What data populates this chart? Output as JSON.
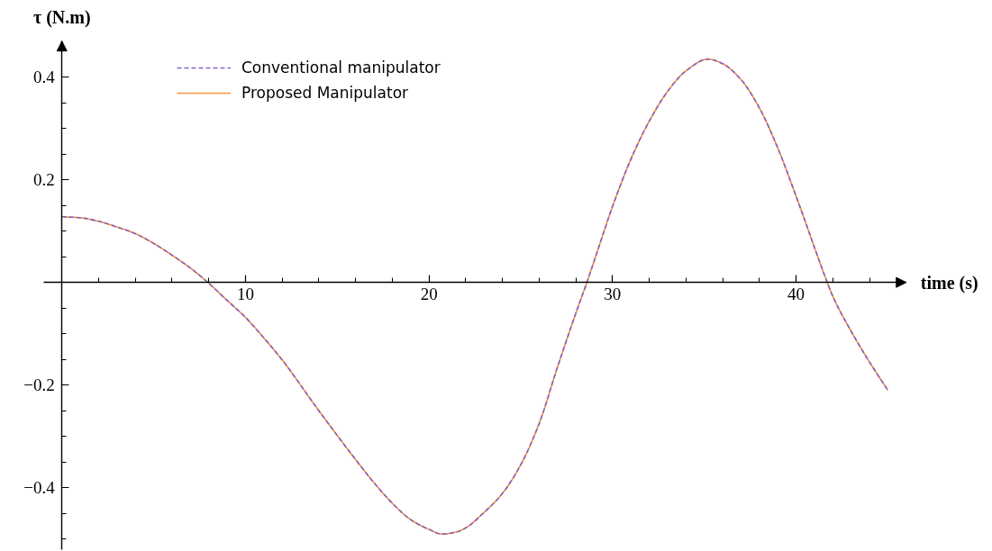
{
  "chart_data": {
    "type": "line",
    "xlabel": "time (s)",
    "ylabel": "τ (N.m)",
    "x": [
      0,
      1,
      2,
      3,
      4,
      5,
      6,
      7,
      7.95,
      9,
      10,
      11,
      12,
      14,
      15,
      16,
      17,
      18,
      19,
      20,
      20.7,
      21.5,
      22,
      23,
      24,
      25,
      26,
      27,
      28,
      28.6,
      29,
      30,
      31,
      32,
      33,
      34,
      35.2,
      36,
      37,
      38,
      39,
      40,
      41.7,
      42,
      43,
      44,
      45
    ],
    "series": [
      {
        "name": "Conventional manipulator",
        "color": "#8462c4",
        "line_style": "dashed",
        "values": [
          0.128,
          0.126,
          0.119,
          0.108,
          0.095,
          0.076,
          0.053,
          0.028,
          0,
          -0.035,
          -0.068,
          -0.108,
          -0.151,
          -0.25,
          -0.298,
          -0.345,
          -0.39,
          -0.43,
          -0.462,
          -0.481,
          -0.49,
          -0.486,
          -0.478,
          -0.448,
          -0.411,
          -0.355,
          -0.275,
          -0.165,
          -0.06,
          0,
          0.042,
          0.148,
          0.24,
          0.314,
          0.372,
          0.412,
          0.435,
          0.426,
          0.395,
          0.34,
          0.262,
          0.168,
          0,
          -0.027,
          -0.095,
          -0.155,
          -0.21
        ]
      },
      {
        "name": "Proposed Manipulator",
        "color": "#f7923f",
        "line_style": "solid",
        "values": [
          0.128,
          0.126,
          0.119,
          0.108,
          0.095,
          0.076,
          0.053,
          0.028,
          0,
          -0.035,
          -0.068,
          -0.108,
          -0.151,
          -0.25,
          -0.298,
          -0.345,
          -0.39,
          -0.43,
          -0.462,
          -0.481,
          -0.49,
          -0.486,
          -0.478,
          -0.448,
          -0.411,
          -0.355,
          -0.275,
          -0.165,
          -0.06,
          0,
          0.042,
          0.148,
          0.24,
          0.314,
          0.372,
          0.412,
          0.435,
          0.426,
          0.395,
          0.34,
          0.262,
          0.168,
          0,
          -0.027,
          -0.095,
          -0.155,
          -0.21
        ]
      }
    ],
    "xlim": [
      -1,
      46
    ],
    "ylim": [
      -0.52,
      0.47
    ],
    "xticks": [
      {
        "value": 2,
        "label": null
      },
      {
        "value": 4,
        "label": null
      },
      {
        "value": 6,
        "label": null
      },
      {
        "value": 8,
        "label": null
      },
      10,
      {
        "value": 12,
        "label": null
      },
      {
        "value": 14,
        "label": null
      },
      {
        "value": 16,
        "label": null
      },
      {
        "value": 18,
        "label": null
      },
      20,
      {
        "value": 22,
        "label": null
      },
      {
        "value": 24,
        "label": null
      },
      {
        "value": 26,
        "label": null
      },
      {
        "value": 28,
        "label": null
      },
      30,
      {
        "value": 32,
        "label": null
      },
      {
        "value": 34,
        "label": null
      },
      {
        "value": 36,
        "label": null
      },
      {
        "value": 38,
        "label": null
      },
      40,
      {
        "value": 42,
        "label": null
      },
      {
        "value": 44,
        "label": null
      }
    ],
    "yticks": [
      {
        "value": -0.5,
        "label": null
      },
      {
        "value": -0.45,
        "label": null
      },
      {
        "value": -0.4,
        "label": "−0.4"
      },
      {
        "value": -0.35,
        "label": null
      },
      {
        "value": -0.3,
        "label": null
      },
      {
        "value": -0.25,
        "label": null
      },
      {
        "value": -0.2,
        "label": "−0.2"
      },
      {
        "value": -0.15,
        "label": null
      },
      {
        "value": -0.1,
        "label": null
      },
      {
        "value": -0.05,
        "label": null
      },
      {
        "value": 0.05,
        "label": null
      },
      {
        "value": 0.1,
        "label": null
      },
      {
        "value": 0.15,
        "label": null
      },
      0.2,
      {
        "value": 0.25,
        "label": null
      },
      {
        "value": 0.3,
        "label": null
      },
      {
        "value": 0.35,
        "label": null
      },
      0.4
    ],
    "legend": "top left"
  }
}
